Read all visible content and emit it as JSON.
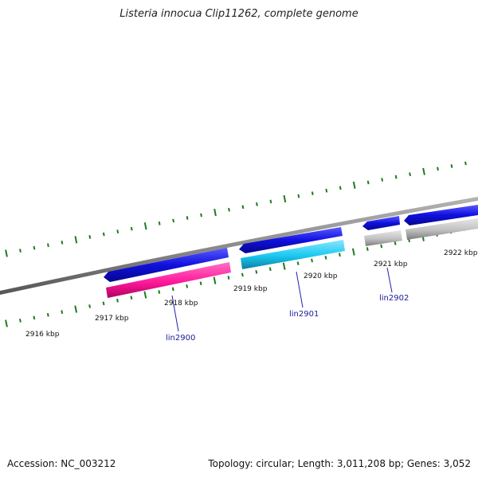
{
  "title": "Listeria innocua Clip11262, complete genome",
  "footer": {
    "accession": "Accession: NC_003212",
    "summary": "Topology: circular; Length: 3,011,208 bp; Genes: 3,052"
  },
  "colors": {
    "backbone": "#8c8c8c",
    "ticks": "#1f7a1f",
    "gene_blue": "#1010e0",
    "gene_magenta": "#ff1a9c",
    "gene_cyan": "#19c8f0",
    "gene_grey": "#c0c0c0",
    "label_line": "#2222aa"
  },
  "scale_labels": [
    "2916 kbp",
    "2917 kbp",
    "2918 kbp",
    "2919 kbp",
    "2920 kbp",
    "2921 kbp",
    "2922 kbp"
  ],
  "genes": [
    {
      "name": "lin2900",
      "strand": "reverse"
    },
    {
      "name": "lin2901",
      "strand": "reverse"
    },
    {
      "name": "lin2902",
      "strand": "reverse"
    }
  ]
}
